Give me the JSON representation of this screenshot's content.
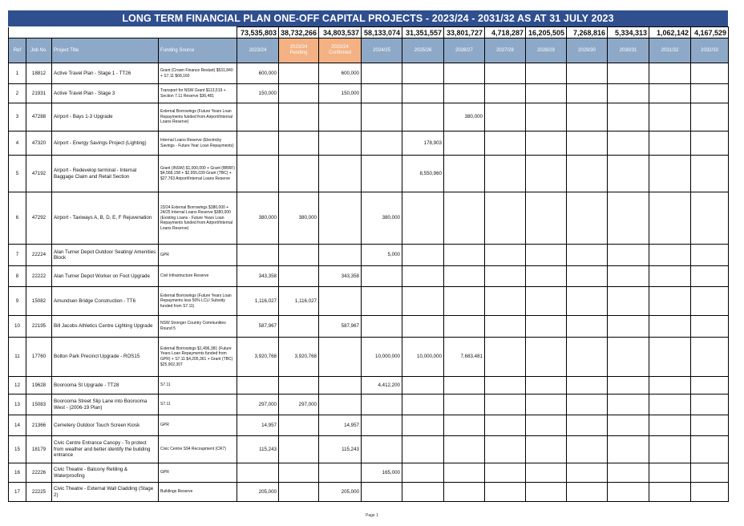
{
  "title": "LONG TERM FINANCIAL PLAN ONE-OFF CAPITAL PROJECTS - 2023/24 - 2031/32 AS AT 31 JULY 2023",
  "totals": [
    "73,535,803",
    "38,732,266",
    "34,803,537",
    "58,133,074",
    "31,351,557",
    "33,801,727",
    "4,718,287",
    "16,205,505",
    "7,268,816",
    "5,334,313",
    "1,062,142",
    "4,167,529"
  ],
  "headers": {
    "ref": "Ref",
    "job": "Job No.",
    "project": "Project Title",
    "funding": "Funding Source",
    "years": [
      "2023/24",
      "2023/24 Pending",
      "2023/24 Confirmed",
      "2024/25",
      "2025/26",
      "2026/27",
      "2027/28",
      "2028/29",
      "2029/30",
      "2030/31",
      "2031/32",
      "2032/33"
    ]
  },
  "rows": [
    {
      "ref": "1",
      "job": "18812",
      "project": "Active Travel Plan - Stage 1 - TT26",
      "funding": "Grant (Crown Finance Restart) $531,840 + S7.11 $68,160",
      "values": [
        "600,000",
        "",
        "600,000",
        "",
        "",
        "",
        "",
        "",
        "",
        "",
        "",
        ""
      ]
    },
    {
      "ref": "2",
      "job": "21931",
      "project": "Active Travel Plan - Stage 3",
      "funding": "Transport for NSW Grant $113,519 + Section 7.11 Reserve $36,481",
      "values": [
        "150,000",
        "",
        "150,000",
        "",
        "",
        "",
        "",
        "",
        "",
        "",
        "",
        ""
      ]
    },
    {
      "ref": "3",
      "job": "47288",
      "project": "Airport - Bays 1-3 Upgrade",
      "funding": "External Borrowings (Future Years Loan Repayments funded from Airport/Internal Loans Reserve)",
      "values": [
        "",
        "",
        "",
        "",
        "",
        "380,000",
        "",
        "",
        "",
        "",
        "",
        ""
      ]
    },
    {
      "ref": "4",
      "job": "47320",
      "project": "Airport - Energy Savings Project (Lighting)",
      "funding": "Internal Loans Reserve (Electricity Savings - Future Year Loan Repayments)",
      "values": [
        "",
        "",
        "",
        "",
        "178,903",
        "",
        "",
        "",
        "",
        "",
        "",
        ""
      ]
    },
    {
      "ref": "5",
      "job": "47192",
      "project": "Airport - Redevelop terminal - Internal Baggage Claim and Retail Section",
      "funding": "Grant (INSW) $1,000,000 + Grant (BBRF) $4,568,158 + $2,955,039 Grant (TBC) + $27,763 Airport/Internal Loans Reserve",
      "values": [
        "",
        "",
        "",
        "",
        "8,550,960",
        "",
        "",
        "",
        "",
        "",
        "",
        ""
      ]
    },
    {
      "ref": "6",
      "job": "47292",
      "project": "Airport - Taxiways A, B, D, E, F Rejuvenation",
      "funding": "23/24 External Borrowings $380,000 + 24/25 Internal Loans Reserve $380,000 (Existing Loans - Future Years Loan Repayments funded from Airport/Internal Loans Reserve)",
      "values": [
        "380,000",
        "380,000",
        "",
        "380,000",
        "",
        "",
        "",
        "",
        "",
        "",
        "",
        ""
      ]
    },
    {
      "ref": "7",
      "job": "22224",
      "project": "Alan Turner Depot Outdoor Seating/ Amenities Block",
      "funding": "GPR",
      "values": [
        "",
        "",
        "",
        "5,000",
        "",
        "",
        "",
        "",
        "",
        "",
        "",
        ""
      ]
    },
    {
      "ref": "8",
      "job": "22222",
      "project": "Alan Turner Depot Worker on Foot Upgrade",
      "funding": "Civil Infrastructure Reserve",
      "values": [
        "343,358",
        "",
        "343,358",
        "",
        "",
        "",
        "",
        "",
        "",
        "",
        "",
        ""
      ]
    },
    {
      "ref": "9",
      "job": "15082",
      "project": "Amundsen Bridge Construction - TT6",
      "funding": "External Borrowings (Future Years Loan Repayments less 50% LCLI Subsidy funded from S7.11)",
      "values": [
        "1,116,027",
        "1,116,027",
        "",
        "",
        "",
        "",
        "",
        "",
        "",
        "",
        "",
        ""
      ]
    },
    {
      "ref": "10",
      "job": "22195",
      "project": "Bill Jacobs Athletics Centre Lighting Upgrade",
      "funding": "NSW Stronger Country Communities Round 5",
      "values": [
        "587,967",
        "",
        "587,967",
        "",
        "",
        "",
        "",
        "",
        "",
        "",
        "",
        ""
      ]
    },
    {
      "ref": "11",
      "job": "17760",
      "project": "Bolton Park Precinct Upgrade - ROS15",
      "funding": "External Borrowings $1,496,381 (Future Years Loan Repayments funded from GPR) + S7.11 $4,205,361 + Grant (TBC) $25,902,307",
      "values": [
        "3,920,768",
        "3,920,768",
        "",
        "10,000,000",
        "10,000,000",
        "7,683,481",
        "",
        "",
        "",
        "",
        "",
        ""
      ]
    },
    {
      "ref": "12",
      "job": "19628",
      "project": "Boorooma St Upgrade - TT28",
      "funding": "S7.11",
      "values": [
        "",
        "",
        "",
        "4,412,200",
        "",
        "",
        "",
        "",
        "",
        "",
        "",
        ""
      ]
    },
    {
      "ref": "13",
      "job": "15083",
      "project": "Boorooma Street Slip Lane into Boorooma West - (2006-19 Plan)",
      "funding": "S7.11",
      "values": [
        "297,000",
        "297,000",
        "",
        "",
        "",
        "",
        "",
        "",
        "",
        "",
        "",
        ""
      ]
    },
    {
      "ref": "14",
      "job": "21366",
      "project": "Cemetery Outdoor Touch Screen Kiosk",
      "funding": "GPR",
      "values": [
        "14,957",
        "",
        "14,957",
        "",
        "",
        "",
        "",
        "",
        "",
        "",
        "",
        ""
      ]
    },
    {
      "ref": "15",
      "job": "18179",
      "project": "Civic Centre Entrance Canopy - To protect from weather and better identify the building entrance",
      "funding": "Civic Centre S94 Recoupment (CR7)",
      "values": [
        "115,243",
        "",
        "115,243",
        "",
        "",
        "",
        "",
        "",
        "",
        "",
        "",
        ""
      ]
    },
    {
      "ref": "16",
      "job": "22226",
      "project": "Civic Theatre - Balcony Retiling & Waterproofing",
      "funding": "GPR",
      "values": [
        "",
        "",
        "",
        "165,000",
        "",
        "",
        "",
        "",
        "",
        "",
        "",
        ""
      ]
    },
    {
      "ref": "17",
      "job": "22225",
      "project": "Civic Theatre - External Wall Cladding (Stage 2)",
      "funding": "Buildings Reserve",
      "values": [
        "205,000",
        "",
        "205,000",
        "",
        "",
        "",
        "",
        "",
        "",
        "",
        "",
        ""
      ]
    }
  ],
  "row_heights": [],
  "page_label": "Page 1"
}
